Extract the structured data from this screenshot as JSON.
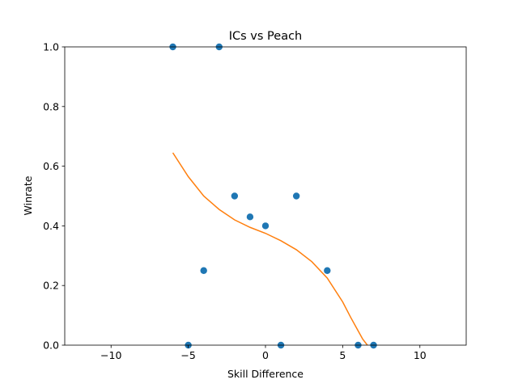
{
  "chart_data": {
    "type": "scatter",
    "title": "ICs vs Peach",
    "xlabel": "Skill Difference",
    "ylabel": "Winrate",
    "xlim": [
      -13,
      13
    ],
    "ylim": [
      0,
      1
    ],
    "xticks": [
      -10,
      -5,
      0,
      5,
      10
    ],
    "xtick_labels": [
      "−10",
      "−5",
      "0",
      "5",
      "10"
    ],
    "yticks": [
      0.0,
      0.2,
      0.4,
      0.6,
      0.8,
      1.0
    ],
    "ytick_labels": [
      "0.0",
      "0.2",
      "0.4",
      "0.6",
      "0.8",
      "1.0"
    ],
    "grid": false,
    "legend": "none",
    "series": [
      {
        "type": "scatter",
        "color": "#1f77b4",
        "x": [
          -6,
          -3,
          -2,
          -1,
          0,
          2,
          -4,
          4,
          -5,
          1,
          6,
          7
        ],
        "y": [
          1.0,
          1.0,
          0.5,
          0.43,
          0.4,
          0.5,
          0.25,
          0.25,
          0.0,
          0.0,
          0.0,
          0.0
        ]
      },
      {
        "type": "line",
        "color": "#ff7f0e",
        "x": [
          -6.0,
          -5.0,
          -4.0,
          -3.0,
          -2.0,
          -1.0,
          0.0,
          1.0,
          2.0,
          3.0,
          4.0,
          5.0,
          5.5,
          6.0,
          6.3,
          6.6
        ],
        "y": [
          0.645,
          0.565,
          0.5,
          0.455,
          0.42,
          0.395,
          0.375,
          0.35,
          0.32,
          0.28,
          0.225,
          0.145,
          0.095,
          0.048,
          0.02,
          0.0
        ]
      }
    ]
  }
}
